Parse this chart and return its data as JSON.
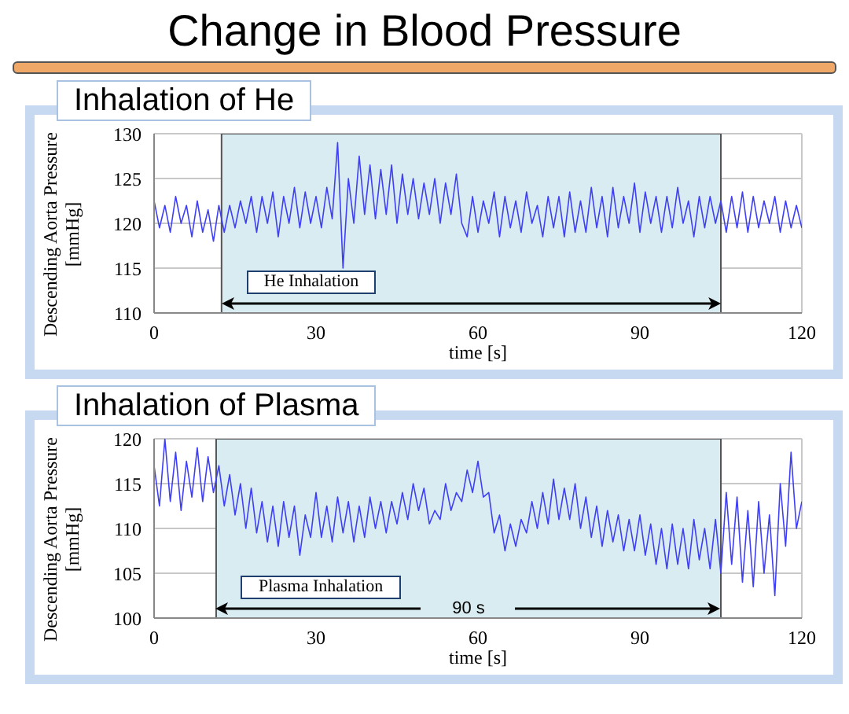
{
  "chart_data": [
    {
      "type": "line",
      "title": "Change in Blood Pressure",
      "subtitle": "Inhalation of He",
      "xlabel": "time [s]",
      "ylabel": "Descending Aorta Pressure [mmHg]",
      "xlim": [
        0,
        120
      ],
      "xticks": [
        0,
        30,
        60,
        90,
        120
      ],
      "ylim": [
        110,
        130
      ],
      "yticks": [
        110,
        115,
        120,
        125,
        130
      ],
      "grid": true,
      "marker": "none",
      "line_style": "solid",
      "x": [
        0,
        1,
        2,
        3,
        4,
        5,
        6,
        7,
        8,
        9,
        10,
        11,
        12,
        13,
        14,
        15,
        16,
        17,
        18,
        19,
        20,
        21,
        22,
        23,
        24,
        25,
        26,
        27,
        28,
        29,
        30,
        31,
        32,
        33,
        34,
        35,
        36,
        37,
        38,
        39,
        40,
        41,
        42,
        43,
        44,
        45,
        46,
        47,
        48,
        49,
        50,
        51,
        52,
        53,
        54,
        55,
        56,
        57,
        58,
        59,
        60,
        61,
        62,
        63,
        64,
        65,
        66,
        67,
        68,
        69,
        70,
        71,
        72,
        73,
        74,
        75,
        76,
        77,
        78,
        79,
        80,
        81,
        82,
        83,
        84,
        85,
        86,
        87,
        88,
        89,
        90,
        91,
        92,
        93,
        94,
        95,
        96,
        97,
        98,
        99,
        100,
        101,
        102,
        103,
        104,
        105,
        106,
        107,
        108,
        109,
        110,
        111,
        112,
        113,
        114,
        115,
        116,
        117,
        118,
        119,
        120
      ],
      "series": [
        {
          "color": "#3f3ff5",
          "values": [
            122.5,
            119.5,
            122,
            119,
            123,
            120,
            122,
            118.5,
            122.5,
            119,
            121.5,
            118,
            122,
            119,
            122,
            119.5,
            122.5,
            120,
            123,
            119,
            123,
            120,
            123.5,
            118.5,
            123,
            120,
            124,
            119.5,
            123.5,
            120,
            123,
            119.5,
            124,
            120.5,
            129,
            115,
            125,
            120,
            127.5,
            121,
            126.5,
            120.5,
            126,
            121,
            126.5,
            120,
            125.5,
            121,
            125,
            120.5,
            124.5,
            121,
            125,
            120,
            124.5,
            121,
            125.5,
            120,
            118.5,
            123,
            119,
            122.5,
            120,
            123.5,
            118.5,
            123,
            119.5,
            122.5,
            119,
            123.5,
            120,
            122,
            118.5,
            123,
            119.5,
            123,
            118.5,
            123.5,
            119,
            122.5,
            119,
            124,
            119.5,
            123,
            118.5,
            124,
            119.5,
            123,
            120,
            124.5,
            119,
            123.5,
            120,
            123,
            119,
            123,
            119.5,
            124,
            120,
            122.5,
            118.5,
            123,
            119.5,
            123,
            120,
            122.5,
            119,
            123,
            119.5,
            123.5,
            119,
            123,
            119.5,
            122.5,
            120,
            123,
            119,
            122.5,
            119.5,
            122,
            119.5
          ]
        }
      ],
      "bands": [
        {
          "axis": "x",
          "from": 12.5,
          "to": 105,
          "label": "He Inhalation",
          "color": "#d8ecf1"
        }
      ]
    },
    {
      "type": "line",
      "title": "Inhalation of Plasma",
      "xlabel": "time [s]",
      "ylabel": "Descending Aorta Pressure [mmHg]",
      "xlim": [
        0,
        120
      ],
      "xticks": [
        0,
        30,
        60,
        90,
        120
      ],
      "ylim": [
        100,
        120
      ],
      "yticks": [
        100,
        105,
        110,
        115,
        120
      ],
      "grid": true,
      "marker": "none",
      "line_style": "solid",
      "x": [
        0,
        1,
        2,
        3,
        4,
        5,
        6,
        7,
        8,
        9,
        10,
        11,
        12,
        13,
        14,
        15,
        16,
        17,
        18,
        19,
        20,
        21,
        22,
        23,
        24,
        25,
        26,
        27,
        28,
        29,
        30,
        31,
        32,
        33,
        34,
        35,
        36,
        37,
        38,
        39,
        40,
        41,
        42,
        43,
        44,
        45,
        46,
        47,
        48,
        49,
        50,
        51,
        52,
        53,
        54,
        55,
        56,
        57,
        58,
        59,
        60,
        61,
        62,
        63,
        64,
        65,
        66,
        67,
        68,
        69,
        70,
        71,
        72,
        73,
        74,
        75,
        76,
        77,
        78,
        79,
        80,
        81,
        82,
        83,
        84,
        85,
        86,
        87,
        88,
        89,
        90,
        91,
        92,
        93,
        94,
        95,
        96,
        97,
        98,
        99,
        100,
        101,
        102,
        103,
        104,
        105,
        106,
        107,
        108,
        109,
        110,
        111,
        112,
        113,
        114,
        115,
        116,
        117,
        118,
        119,
        120
      ],
      "series": [
        {
          "color": "#3f3ff5",
          "values": [
            117,
            112.5,
            120,
            113,
            118.5,
            112,
            117.5,
            113.5,
            119,
            113,
            118,
            114,
            117,
            112.5,
            116,
            111.5,
            115,
            110,
            114.5,
            109.5,
            113,
            108.5,
            112.5,
            108,
            113,
            109,
            112.5,
            107,
            111.5,
            109,
            114,
            109,
            112.5,
            108.5,
            113.5,
            109.5,
            113,
            108.5,
            112.5,
            109,
            113.5,
            110,
            113,
            109.5,
            113,
            110.5,
            114,
            111,
            115,
            112,
            114.5,
            110.5,
            112,
            111,
            115,
            112,
            114,
            113,
            116.5,
            114,
            117.5,
            113.5,
            114,
            109.5,
            111.5,
            107.5,
            110.5,
            108,
            111,
            109.5,
            113,
            110,
            114,
            110.5,
            115.5,
            111,
            114.5,
            111,
            115,
            110,
            113.5,
            109,
            112.5,
            108,
            112,
            108.5,
            111.5,
            107.5,
            111,
            107.5,
            111.5,
            107,
            110.5,
            106,
            110,
            105.5,
            110.5,
            106,
            110,
            105.5,
            111,
            106.5,
            110,
            105.5,
            111,
            105,
            114,
            106,
            113.5,
            104,
            112,
            103.5,
            113,
            105,
            111.5,
            102.5,
            115,
            108,
            118.5,
            110,
            113
          ]
        }
      ],
      "bands": [
        {
          "axis": "x",
          "from": 11.5,
          "to": 105,
          "label": "Plasma Inhalation",
          "color": "#d8ecf1"
        }
      ],
      "annotations": [
        "90 s"
      ]
    }
  ]
}
